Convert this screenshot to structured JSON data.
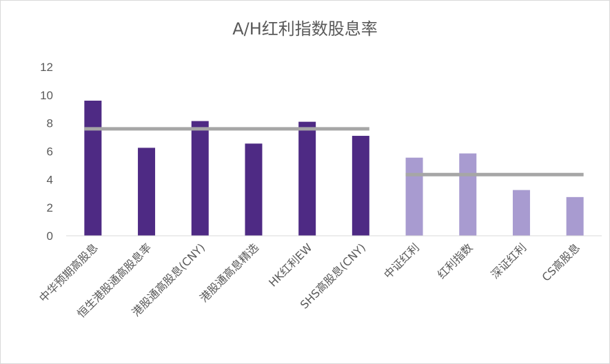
{
  "chart_data": {
    "type": "bar",
    "title": "A/H红利指数股息率",
    "xlabel": "",
    "ylabel": "",
    "ylim": [
      0,
      12
    ],
    "yticks": [
      0,
      2,
      4,
      6,
      8,
      10,
      12
    ],
    "grid": false,
    "legend": "none",
    "categories": [
      "中华预期高股息",
      "恒生港股通高股息率",
      "港股通高股息(CNY)",
      "港股通高息精选",
      "HK红利EW",
      "SHS高股息(CNY)",
      "中证红利",
      "红利指数",
      "深证红利",
      "CS高股息"
    ],
    "values": [
      9.6,
      6.25,
      8.15,
      6.55,
      8.1,
      7.1,
      5.55,
      5.85,
      3.25,
      2.75
    ],
    "bar_colors": [
      "#4e2a84",
      "#4e2a84",
      "#4e2a84",
      "#4e2a84",
      "#4e2a84",
      "#4e2a84",
      "#a89bd0",
      "#a89bd0",
      "#a89bd0",
      "#a89bd0"
    ],
    "average_lines": [
      {
        "from_category": 0,
        "to_category": 5,
        "value": 7.6,
        "color": "#a6a6a6"
      },
      {
        "from_category": 6,
        "to_category": 9,
        "value": 4.35,
        "color": "#a6a6a6"
      }
    ]
  }
}
